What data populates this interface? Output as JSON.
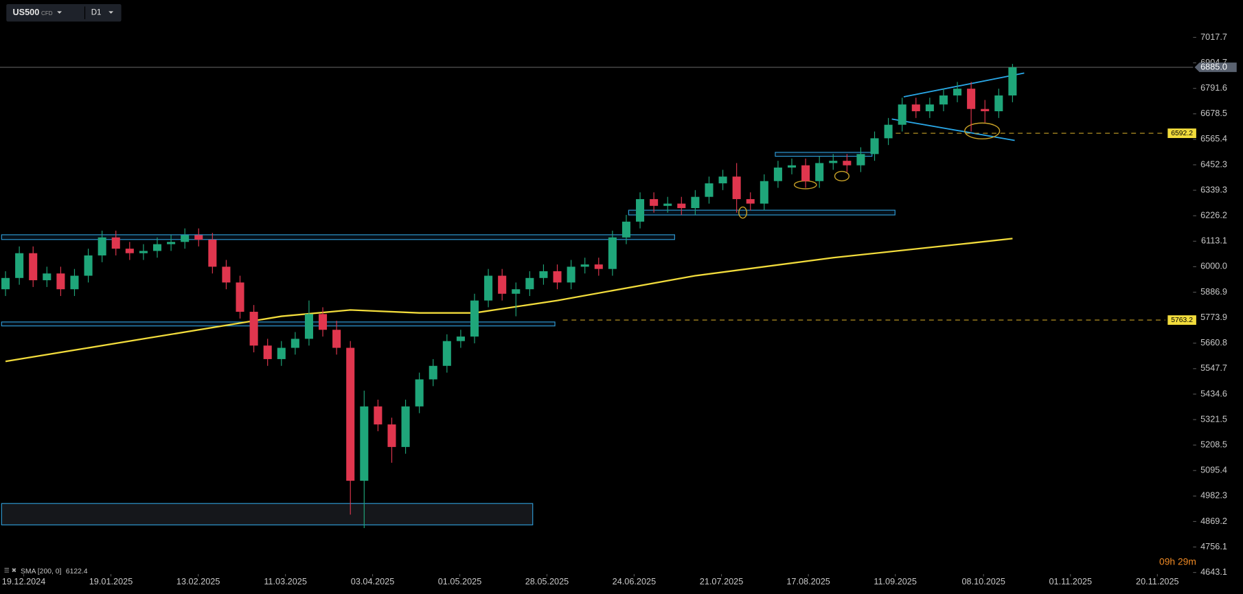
{
  "chart_data": {
    "type": "candlestick",
    "symbol": "US500",
    "instrument": "CFD",
    "timeframe": "D1",
    "countdown": "09h 29m",
    "up_color": "#1fa67a",
    "down_color": "#e0364e",
    "open": [
      5900,
      5950,
      6060,
      5940,
      5970,
      5900,
      5960,
      6050,
      6130,
      6080,
      6060,
      6070,
      6100,
      6110,
      6140,
      6120,
      6000,
      5930,
      5800,
      5650,
      5590,
      5640,
      5680,
      5790,
      5720,
      5640,
      5050,
      5380,
      5300,
      5200,
      5380,
      5500,
      5560,
      5670,
      5690,
      5850,
      5960,
      5880,
      5900,
      5950,
      5980,
      5930,
      6000,
      6010,
      5990,
      6130,
      6200,
      6300,
      6270,
      6280,
      6260,
      6310,
      6370,
      6400,
      6300,
      6280,
      6380,
      6440,
      6450,
      6380,
      6460,
      6470,
      6450,
      6500,
      6570,
      6630,
      6720,
      6690,
      6720,
      6760,
      6790,
      6700,
      6690,
      6760
    ],
    "high": [
      5980,
      6090,
      6090,
      6000,
      6000,
      5990,
      6080,
      6160,
      6160,
      6110,
      6100,
      6130,
      6140,
      6170,
      6170,
      6150,
      6030,
      5960,
      5830,
      5680,
      5670,
      5710,
      5850,
      5820,
      5760,
      5670,
      5450,
      5410,
      5330,
      5410,
      5530,
      5590,
      5700,
      5720,
      5880,
      5990,
      5990,
      5930,
      5980,
      6010,
      6010,
      6030,
      6040,
      6040,
      6160,
      6230,
      6330,
      6330,
      6310,
      6310,
      6340,
      6400,
      6430,
      6460,
      6330,
      6410,
      6470,
      6480,
      6480,
      6490,
      6500,
      6500,
      6530,
      6600,
      6660,
      6750,
      6750,
      6750,
      6790,
      6820,
      6820,
      6740,
      6790,
      6900
    ],
    "low": [
      5870,
      5920,
      5910,
      5910,
      5870,
      5870,
      5930,
      6020,
      6050,
      6030,
      6030,
      6040,
      6070,
      6080,
      6090,
      5970,
      5900,
      5770,
      5620,
      5560,
      5560,
      5610,
      5650,
      5690,
      5610,
      4900,
      4840,
      5270,
      5130,
      5170,
      5350,
      5470,
      5530,
      5640,
      5660,
      5820,
      5850,
      5780,
      5870,
      5920,
      5900,
      5900,
      5970,
      5960,
      5960,
      6100,
      6170,
      6240,
      6240,
      6230,
      6230,
      6280,
      6340,
      6240,
      6250,
      6250,
      6350,
      6410,
      6350,
      6350,
      6430,
      6420,
      6420,
      6470,
      6540,
      6600,
      6660,
      6660,
      6690,
      6730,
      6600,
      6640,
      6660,
      6730
    ],
    "close": [
      5950,
      6060,
      5940,
      5970,
      5900,
      5960,
      6050,
      6130,
      6080,
      6060,
      6070,
      6100,
      6110,
      6140,
      6120,
      6000,
      5930,
      5800,
      5650,
      5590,
      5640,
      5680,
      5790,
      5720,
      5640,
      5050,
      5380,
      5300,
      5200,
      5380,
      5500,
      5560,
      5670,
      5690,
      5850,
      5960,
      5880,
      5900,
      5950,
      5980,
      5930,
      6000,
      6010,
      5990,
      6130,
      6200,
      6300,
      6270,
      6280,
      6260,
      6310,
      6370,
      6400,
      6300,
      6280,
      6380,
      6440,
      6450,
      6380,
      6460,
      6470,
      6450,
      6500,
      6570,
      6630,
      6720,
      6690,
      6720,
      6760,
      6790,
      6700,
      6690,
      6760,
      6885
    ],
    "indicator": {
      "name": "SMA [200, 0]",
      "last": 6122.4,
      "color": "#f2dc3c",
      "x": [
        0,
        10,
        20,
        25,
        30,
        34,
        40,
        50,
        60,
        70,
        73
      ],
      "values": [
        5580,
        5680,
        5780,
        5808,
        5795,
        5795,
        5850,
        5960,
        6040,
        6105,
        6125
      ]
    },
    "last_price": {
      "value": 6885,
      "label": "6885.0"
    },
    "levels": [
      6592.2,
      5763.2
    ],
    "xlim": [
      -0.4,
      85.8
    ],
    "ylim": [
      4643.1,
      7017.7
    ],
    "xticks": [
      {
        "value": 1.32,
        "label": "19.12.2024"
      },
      {
        "value": 7.64,
        "label": "19.01.2025"
      },
      {
        "value": 13.97,
        "label": "13.02.2025"
      },
      {
        "value": 20.29,
        "label": "11.03.2025"
      },
      {
        "value": 26.61,
        "label": "03.04.2025"
      },
      {
        "value": 32.93,
        "label": "01.05.2025"
      },
      {
        "value": 39.25,
        "label": "28.05.2025"
      },
      {
        "value": 45.57,
        "label": "24.06.2025"
      },
      {
        "value": 51.9,
        "label": "21.07.2025"
      },
      {
        "value": 58.2,
        "label": "17.08.2025"
      },
      {
        "value": 64.5,
        "label": "11.09.2025"
      },
      {
        "value": 70.9,
        "label": "08.10.2025"
      },
      {
        "value": 77.2,
        "label": "01.11.2025"
      },
      {
        "value": 83.5,
        "label": "20.11.2025"
      }
    ],
    "yticks": [
      7017.7,
      6904.7,
      6791.6,
      6678.5,
      6565.4,
      6452.3,
      6339.3,
      6226.2,
      6113.1,
      {
        "value": 6000,
        "label": "6000.0"
      },
      5886.9,
      5773.9,
      5660.8,
      5547.7,
      5434.6,
      5321.5,
      5208.5,
      5095.4,
      4982.3,
      4869.2,
      4756.1,
      4643.1
    ]
  }
}
